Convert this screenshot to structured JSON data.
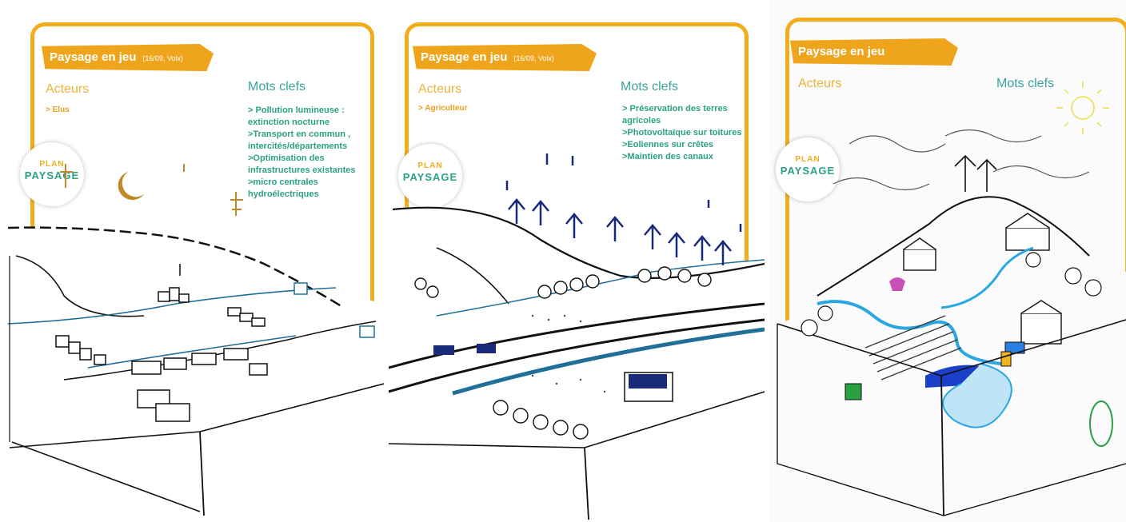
{
  "panels": [
    {
      "title": "Paysage en jeu",
      "date": "(16/09, Volx)",
      "acteurs_heading": "Acteurs",
      "mots_heading": "Mots clefs",
      "acteurs": [
        "> Elus"
      ],
      "keywords": [
        "> Pollution lumineuse :",
        "extinction nocturne",
        ">Transport en commun ,",
        "intercités/départements",
        ">Optimisation des",
        "infrastructures existantes",
        ">micro centrales",
        "hydroélectriques"
      ]
    },
    {
      "title": "Paysage en jeu",
      "date": "(16/09, Volx)",
      "acteurs_heading": "Acteurs",
      "mots_heading": "Mots clefs",
      "acteurs": [
        "> Agriculteur"
      ],
      "keywords": [
        "> Préservation des terres",
        "agricoles",
        ">Photovoltaïque sur toitures",
        ">Eoliennes sur crêtes",
        ">Maintien des canaux"
      ]
    },
    {
      "title": "Paysage en jeu",
      "date": "",
      "acteurs_heading": "Acteurs",
      "mots_heading": "Mots clefs"
    }
  ],
  "logo": {
    "line1": "PLAN",
    "line2": "PAYSAGE"
  },
  "colors": {
    "orange": "#f2ad1c",
    "teal": "#2aa283",
    "water": "#2aa7e0"
  }
}
